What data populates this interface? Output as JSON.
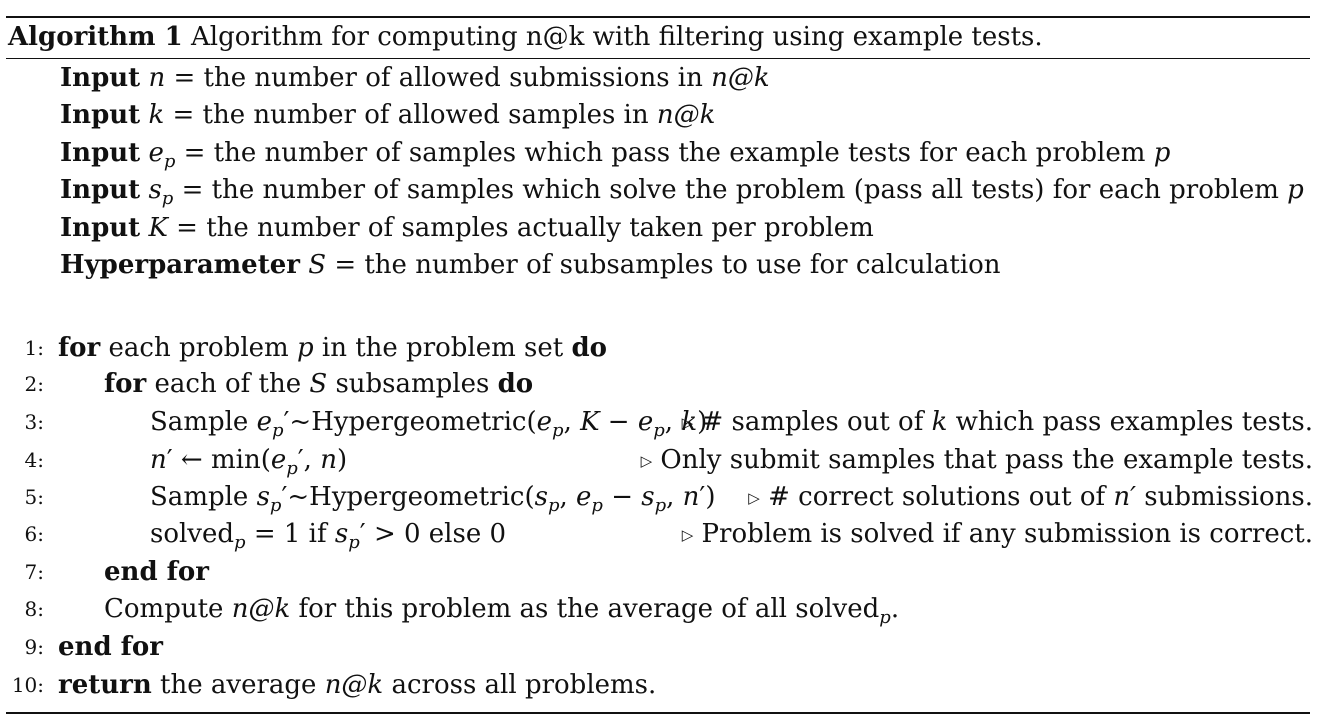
{
  "caption": {
    "label": "Algorithm 1",
    "title": "Algorithm for computing n@k with filtering using example tests."
  },
  "inputs": [
    {
      "kw": "Input",
      "sym": "n",
      "sub": "",
      "text": "= the number of allowed submissions in",
      "tail": "n@k"
    },
    {
      "kw": "Input",
      "sym": "k",
      "sub": "",
      "text": "= the number of allowed samples in",
      "tail": "n@k"
    },
    {
      "kw": "Input",
      "sym": "e",
      "sub": "p",
      "text": "= the number of samples which pass the example tests for each problem",
      "tail": "p"
    },
    {
      "kw": "Input",
      "sym": "s",
      "sub": "p",
      "text": "= the number of samples which solve the problem (pass all tests) for each problem",
      "tail": "p"
    },
    {
      "kw": "Input",
      "sym": "K",
      "sub": "",
      "text": "= the number of samples actually taken per problem",
      "tail": ""
    },
    {
      "kw": "Hyperparameter",
      "sym": "S",
      "sub": "",
      "text": "= the number of subsamples to use for calculation",
      "tail": ""
    }
  ],
  "lines": {
    "l1": {
      "num": "1:",
      "kw_for": "for",
      "t1": "each problem",
      "p": "p",
      "t2": "in the problem set",
      "kw_do": "do"
    },
    "l2": {
      "num": "2:",
      "kw_for": "for",
      "t1": "each of the",
      "S": "S",
      "t2": "subsamples",
      "kw_do": "do"
    },
    "l3": {
      "num": "3:",
      "sample": "Sample",
      "dist": "~Hypergeometric",
      "comment_a": "# samples out of",
      "comment_k": "k",
      "comment_b": "which pass examples tests."
    },
    "l4": {
      "num": "4:",
      "assign": "← min",
      "comment": "Only submit samples that pass the example tests."
    },
    "l5": {
      "num": "5:",
      "sample": "Sample",
      "dist": "~Hypergeometric",
      "comment_a": "# correct solutions out of",
      "comment_n": "n′",
      "comment_b": "submissions."
    },
    "l6": {
      "num": "6:",
      "solved": "solved",
      "t1": "= 1 if",
      "t2": "> 0 else 0",
      "comment": "Problem is solved if any submission is correct."
    },
    "l7": {
      "num": "7:",
      "kw": "end for"
    },
    "l8": {
      "num": "8:",
      "t1": "Compute",
      "nk": "n@k",
      "t2": "for this problem as the average of all solved",
      "sub": "p",
      "t3": "."
    },
    "l9": {
      "num": "9:",
      "kw": "end for"
    },
    "l10": {
      "num": "10:",
      "kw": "return",
      "t1": "the average",
      "nk": "n@k",
      "t2": "across all problems."
    }
  }
}
